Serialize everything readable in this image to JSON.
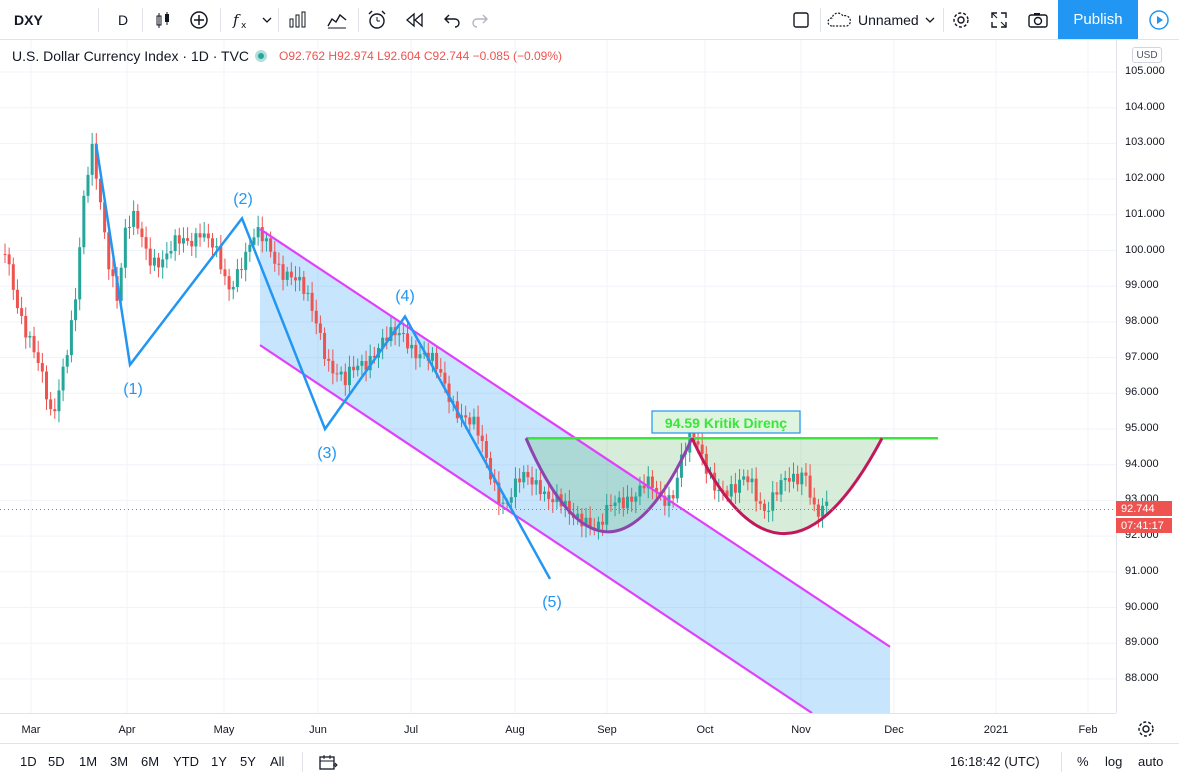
{
  "toolbar": {
    "symbol": "DXY",
    "interval": "D",
    "indicators_icon": "fx-icon",
    "layout_name": "Unnamed",
    "publish_label": "Publish"
  },
  "legend": {
    "title": "U.S. Dollar Currency Index · 1D · TVC",
    "open": "O92.762",
    "high": "H92.974",
    "low": "L92.604",
    "close": "C92.744",
    "change": "−0.085 (−0.09%)"
  },
  "price_axis": {
    "currency": "USD",
    "labels": [
      "105.000",
      "104.000",
      "103.000",
      "102.000",
      "101.000",
      "100.000",
      "99.000",
      "98.000",
      "97.000",
      "96.000",
      "95.000",
      "94.000",
      "93.000",
      "92.000",
      "91.000",
      "90.000",
      "89.000",
      "88.000"
    ],
    "last_price": "92.744",
    "countdown": "07:41:17"
  },
  "time_axis": {
    "labels": [
      "Mar",
      "Apr",
      "May",
      "Jun",
      "Jul",
      "Aug",
      "Sep",
      "Oct",
      "Nov",
      "Dec",
      "2021",
      "Feb"
    ]
  },
  "annotations": {
    "wave_labels": [
      "(1)",
      "(2)",
      "(3)",
      "(4)",
      "(5)"
    ],
    "resistance_label": "94.59 Kritik Direnç"
  },
  "bottom_bar": {
    "ranges": [
      "1D",
      "5D",
      "1M",
      "3M",
      "6M",
      "YTD",
      "1Y",
      "5Y",
      "All"
    ],
    "clock": "16:18:42 (UTC)",
    "percent": "%",
    "log": "log",
    "auto": "auto"
  },
  "colors": {
    "up": "#26a69a",
    "down": "#ef5350",
    "channel": "#e040fb",
    "wave": "#2196f3",
    "resistance": "#39e639",
    "accent": "#2196f3"
  }
}
